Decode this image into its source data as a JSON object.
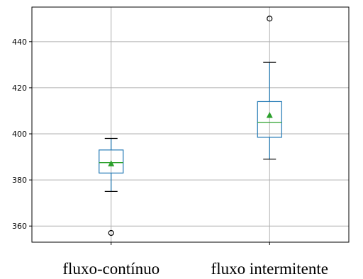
{
  "chart_data": {
    "type": "box",
    "title": "",
    "xlabel": "",
    "ylabel": "",
    "ylim": [
      353,
      455
    ],
    "yticks": [
      360,
      380,
      400,
      420,
      440
    ],
    "grid": true,
    "categories": [
      "fluxo-contínuo",
      "fluxo intermitente"
    ],
    "boxes": [
      {
        "category": "fluxo-contínuo",
        "whisker_low": 375,
        "q1": 383,
        "median": 387.5,
        "q3": 393,
        "whisker_high": 398,
        "mean": 387,
        "outliers": [
          357
        ]
      },
      {
        "category": "fluxo intermitente",
        "whisker_low": 389,
        "q1": 398.5,
        "median": 405,
        "q3": 414,
        "whisker_high": 431,
        "mean": 408,
        "outliers": [
          450
        ]
      }
    ],
    "colors": {
      "box": "#1f77b4",
      "median": "#2ca02c",
      "mean": "#2ca02c",
      "grid": "#b0b0b0",
      "outlier": "#000000"
    }
  }
}
